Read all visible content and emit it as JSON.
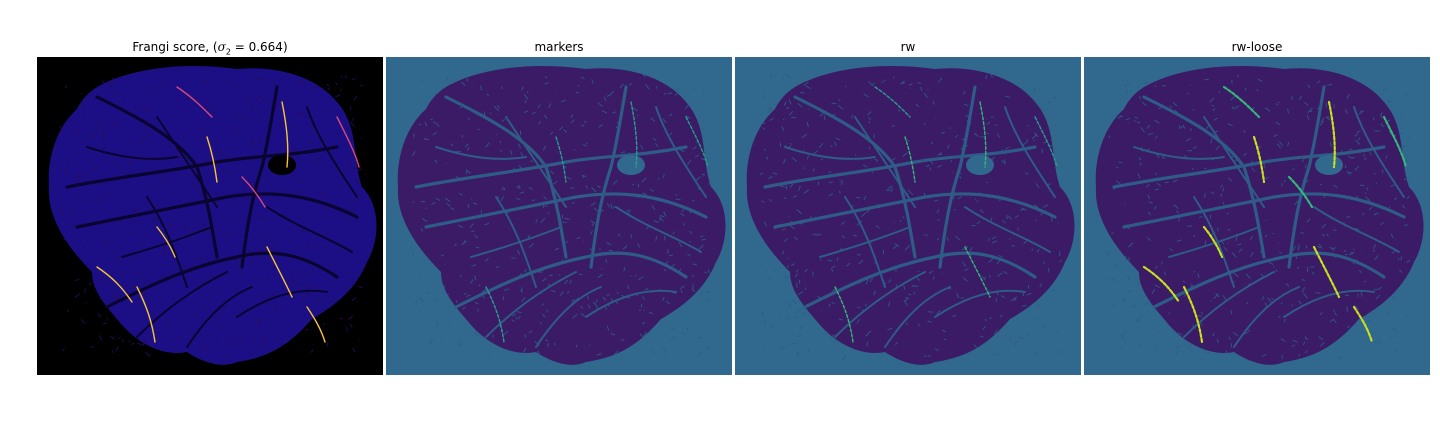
{
  "figure": {
    "panels": [
      {
        "id": "frangi",
        "title_prefix": "Frangi score, (",
        "title_sigma": "σ",
        "title_sub": "2",
        "title_suffix": " = 0.664)",
        "colors": {
          "background": "#000000",
          "tissue": "#1c0f86",
          "veins": "#2a0b5c",
          "highlight": "#f6c33b",
          "highlight2": "#d8497a"
        }
      },
      {
        "id": "markers",
        "title": "markers",
        "colors": {
          "background": "#31688e",
          "tissue": "#3b1a66",
          "veins": "#2e5c86",
          "highlight": "#2a9d8f",
          "highlight2": "#20a386"
        }
      },
      {
        "id": "rw",
        "title": "rw",
        "colors": {
          "background": "#31688e",
          "tissue": "#3b1a66",
          "veins": "#2e5c86",
          "highlight": "#35b779",
          "highlight2": "#2a9d8f"
        }
      },
      {
        "id": "rw-loose",
        "title": "rw-loose",
        "colors": {
          "background": "#31688e",
          "tissue": "#3b1a66",
          "veins": "#2e5c86",
          "highlight": "#c8e020",
          "highlight2": "#35b779"
        }
      }
    ]
  }
}
